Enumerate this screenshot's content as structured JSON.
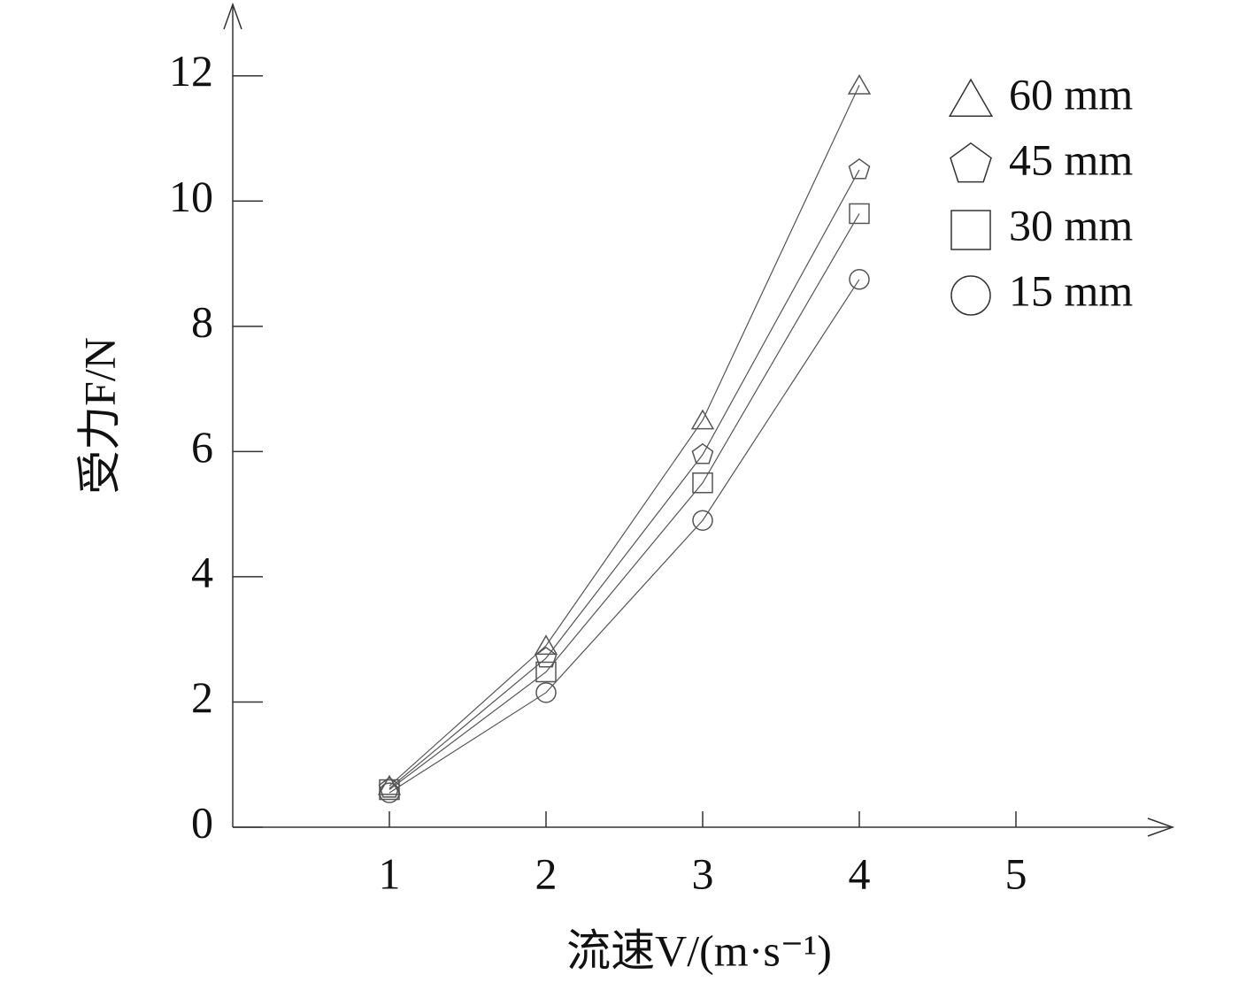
{
  "chart_data": {
    "type": "line",
    "x_label": "流速V/(m·s⁻¹)",
    "y_label": "受力F/N",
    "x": [
      1,
      2,
      3,
      4
    ],
    "series": [
      {
        "name": "60 mm",
        "marker": "triangle",
        "color": "#555555",
        "values": [
          0.66,
          2.9,
          6.5,
          11.85
        ]
      },
      {
        "name": "45 mm",
        "marker": "pentagon",
        "color": "#555555",
        "values": [
          0.62,
          2.7,
          5.95,
          10.5
        ]
      },
      {
        "name": "30 mm",
        "marker": "square",
        "color": "#555555",
        "values": [
          0.6,
          2.48,
          5.5,
          9.8
        ]
      },
      {
        "name": "15 mm",
        "marker": "circle",
        "color": "#555555",
        "values": [
          0.55,
          2.15,
          4.9,
          8.75
        ]
      }
    ],
    "xlim": [
      0,
      6
    ],
    "ylim": [
      0,
      13
    ],
    "xticks": [
      1,
      2,
      3,
      4,
      5
    ],
    "yticks": [
      0,
      2,
      4,
      6,
      8,
      10,
      12
    ],
    "grid": false,
    "legend": "upper right"
  }
}
